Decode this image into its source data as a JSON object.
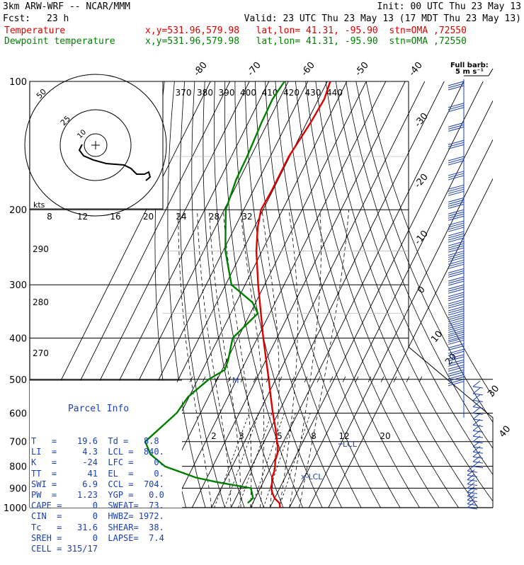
{
  "header": {
    "model": "3km ARW-WRF -- NCAR/MMM",
    "init": "Init: 00 UTC Thu 23 May 13",
    "fcst_label": "Fcst:",
    "fcst_value": "23 h",
    "valid": "Valid: 23 UTC Thu 23 May 13 (17 MDT Thu 23 May 13)",
    "temp_label": "Temperature",
    "dew_label": "Dewpoint temperature",
    "loc_temp": "x,y=531.96,579.98   lat,lon= 41.31, -95.90  stn=OMA ,72550",
    "loc_dew": "x,y=531.96,579.98   lat,lon= 41.31, -95.90  stn=OMA ,72550"
  },
  "barb_legend": {
    "title": "Full barb:",
    "value": "5 m s⁻¹"
  },
  "parcel_info": {
    "title": "Parcel Info",
    "lines": [
      "T   =    19.6  Td =   8.8",
      "LI  =     4.3  LCL =  840.",
      "K   =     -24  LFC =    0.",
      "TT  =      41  EL  =    0.",
      "SWI =     6.9  CCL =  704.",
      "PW  =    1.23  YGP =   0.0",
      "CAPE =      0  SWEAT=  73.",
      "CIN  =      0  HWBZ= 1972.",
      "Tc   =   31.6  SHEAR=  38.",
      "SREH =      0  LAPSE=  7.4",
      "CELL = 315/17"
    ]
  },
  "hodograph": {
    "axis_label": "kts",
    "rings": [
      "50",
      "25",
      "10"
    ]
  },
  "colors": {
    "temperature": "#e00000",
    "dewpoint": "#008000",
    "annotation": "#1b3fb0"
  },
  "chart_data": {
    "type": "line",
    "y_scale": "log-pressure",
    "pressure_levels": [
      100,
      200,
      300,
      400,
      500,
      600,
      700,
      800,
      900,
      1000
    ],
    "isotherm_labels": [
      "-80",
      "-70",
      "-60",
      "-50",
      "-40",
      "-30",
      "-20",
      "-10",
      "0",
      "10",
      "20",
      "30",
      "40"
    ],
    "theta_labels": [
      "370",
      "380",
      "390",
      "400",
      "410",
      "420",
      "430",
      "440"
    ],
    "theta_left_labels": [
      "290",
      "280",
      "270"
    ],
    "mixing_ratio_labels": [
      "2",
      "3",
      "5",
      "8",
      "12",
      "20"
    ],
    "hodo_speed_labels": [
      "8",
      "12",
      "16",
      "20",
      "24",
      "28",
      "32"
    ],
    "annotations": {
      "lcl": "LCL",
      "lcl2": "x-LCL",
      "m": "M"
    },
    "series": [
      {
        "name": "Temperature",
        "points": [
          [
            1000,
            25.3
          ],
          [
            975,
            23.6
          ],
          [
            950,
            19.9
          ],
          [
            925,
            17.6
          ],
          [
            900,
            15.6
          ],
          [
            870,
            14.5
          ],
          [
            850,
            13.3
          ],
          [
            825,
            13.0
          ],
          [
            800,
            12.0
          ],
          [
            775,
            10.6
          ],
          [
            750,
            10.1
          ],
          [
            725,
            8.8
          ],
          [
            700,
            6.7
          ],
          [
            650,
            2.3
          ],
          [
            600,
            -2.8
          ],
          [
            550,
            -8.0
          ],
          [
            500,
            -13.6
          ],
          [
            400,
            -27.0
          ],
          [
            300,
            -43.3
          ],
          [
            250,
            -52.9
          ],
          [
            220,
            -58.3
          ],
          [
            200,
            -61.1
          ],
          [
            180,
            -60.5
          ],
          [
            150,
            -60.5
          ],
          [
            125,
            -58.0
          ],
          [
            110,
            -57.0
          ],
          [
            100,
            -58.5
          ]
        ]
      },
      {
        "name": "Dewpoint temperature",
        "points": [
          [
            975,
            7.4
          ],
          [
            950,
            8.9
          ],
          [
            900,
            5.2
          ],
          [
            870,
            -14.5
          ],
          [
            850,
            -25.8
          ],
          [
            800,
            -44.5
          ],
          [
            750,
            -55.0
          ],
          [
            700,
            -61.0
          ],
          [
            600,
            -52.2
          ],
          [
            550,
            -50.5
          ],
          [
            500,
            -44.4
          ],
          [
            475,
            -38.6
          ],
          [
            450,
            -39.4
          ],
          [
            400,
            -42.7
          ],
          [
            350,
            -36.1
          ],
          [
            330,
            -41.7
          ],
          [
            300,
            -57.0
          ],
          [
            250,
            -68.8
          ],
          [
            200,
            -79.2
          ],
          [
            170,
            -81.6
          ],
          [
            150,
            -81.9
          ],
          [
            125,
            -83.2
          ],
          [
            110,
            -83.6
          ],
          [
            100,
            -82.0
          ]
        ]
      }
    ]
  }
}
